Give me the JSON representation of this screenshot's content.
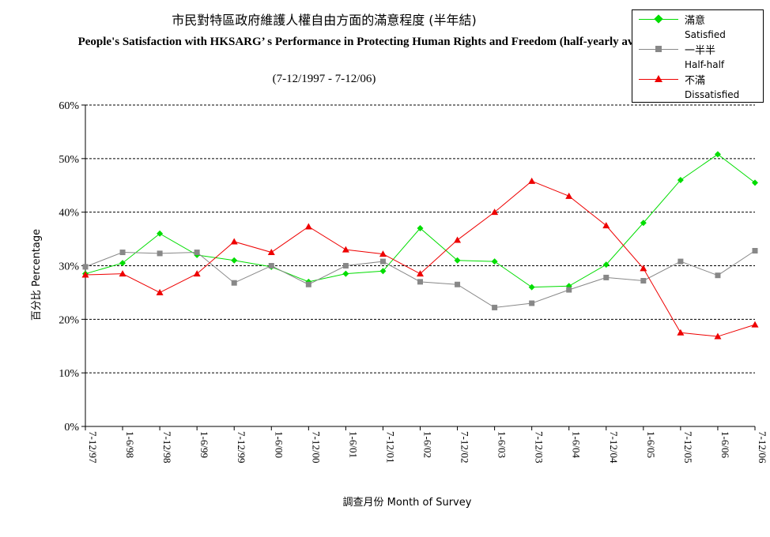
{
  "chart_data": {
    "type": "line",
    "title_zh": "市民對特區政府維護人權自由方面的滿意程度 (半年結)",
    "title_en": "People's Satisfaction with HKSARG’ s Performance in Protecting Human Rights and Freedom (half-yearly average)",
    "subtitle": "(7-12/1997 - 7-12/06)",
    "xlabel": "調查月份 Month of Survey",
    "ylabel": "百分比 Percentage",
    "ylim": [
      0,
      60
    ],
    "yticks": [
      "0%",
      "10%",
      "20%",
      "30%",
      "40%",
      "50%",
      "60%"
    ],
    "grid": "horizontal dashed",
    "legend_position": "top-right",
    "categories": [
      "7-12/97",
      "1-6/98",
      "7-12/98",
      "1-6/99",
      "7-12/99",
      "1-6/00",
      "7-12/00",
      "1-6/01",
      "7-12/01",
      "1-6/02",
      "7-12/02",
      "1-6/03",
      "7-12/03",
      "1-6/04",
      "7-12/04",
      "1-6/05",
      "7-12/05",
      "1-6/06",
      "7-12/06"
    ],
    "series": [
      {
        "name_zh": "滿意",
        "name_en": "Satisfied",
        "color": "#00dd00",
        "marker": "diamond",
        "values": [
          28.5,
          30.5,
          36,
          32,
          31,
          29.8,
          27,
          28.5,
          29,
          37,
          31,
          30.8,
          26,
          26.2,
          30.2,
          38,
          46,
          50.8,
          45.5
        ]
      },
      {
        "name_zh": "一半半",
        "name_en": "Half-half",
        "color": "#888888",
        "marker": "square",
        "values": [
          29.8,
          32.5,
          32.3,
          32.5,
          26.8,
          30,
          26.5,
          30,
          30.8,
          27,
          26.5,
          22.2,
          23,
          25.5,
          27.8,
          27.2,
          30.8,
          28.2,
          32.8
        ]
      },
      {
        "name_zh": "不滿",
        "name_en": "Dissatisfied",
        "color": "#ee0000",
        "marker": "triangle",
        "values": [
          28.3,
          28.5,
          25,
          28.5,
          34.5,
          32.5,
          37.3,
          33,
          32.2,
          28.5,
          34.8,
          40,
          45.8,
          43,
          37.5,
          29.5,
          17.5,
          16.8,
          19
        ]
      }
    ]
  }
}
